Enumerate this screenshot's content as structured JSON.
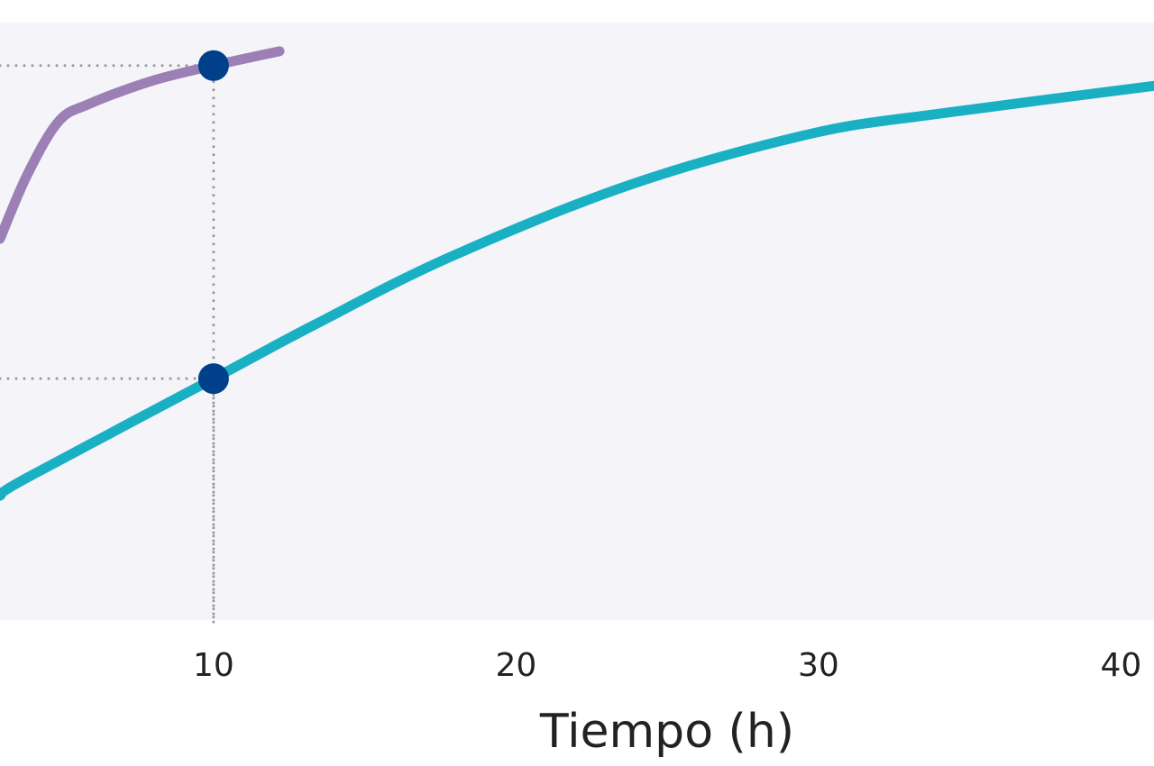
{
  "chart_data": {
    "type": "line",
    "x_label": "Tiempo (h)",
    "xlim": [
      2.94,
      41.09
    ],
    "xticks": [
      10,
      20,
      30,
      40
    ],
    "ylim": [
      0,
      100
    ],
    "background": "#f4f4f9",
    "series": [
      {
        "color": "#9b7fb5",
        "x": [
          2.94,
          3.83,
          4.87,
          5.9,
          7.94,
          10,
          12.18
        ],
        "values": [
          63.8,
          74.4,
          83.4,
          86.4,
          90.2,
          92.8,
          95.2
        ]
      },
      {
        "color": "#1ab0c4",
        "x": [
          2.94,
          3.83,
          10,
          13.37,
          17.84,
          23.8,
          29.76,
          34.23,
          41.09
        ],
        "values": [
          20.8,
          23.8,
          40.4,
          49.5,
          60.8,
          72.9,
          81.4,
          84.9,
          89.4
        ]
      }
    ],
    "markers": {
      "color": "#003f8a",
      "x": [
        10,
        10
      ],
      "values": [
        92.8,
        40.4
      ]
    }
  }
}
